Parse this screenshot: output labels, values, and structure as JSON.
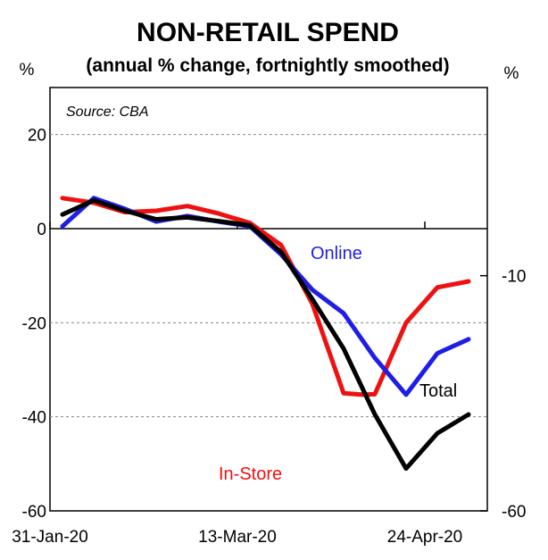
{
  "chart_data": {
    "type": "line",
    "title": "NON-RETAIL SPEND",
    "subtitle": "(annual % change, fortnightly smoothed)",
    "source": "Source: CBA",
    "left_unit": "%",
    "right_unit": "%",
    "ylim": [
      -60,
      30
    ],
    "left_ticks": [
      "20",
      "0",
      "-20",
      "-40",
      "-60"
    ],
    "left_tick_values": [
      20,
      0,
      -20,
      -40,
      -60
    ],
    "right_ticks": [
      "-10",
      "-60"
    ],
    "right_tick_values": [
      -10,
      -60
    ],
    "gridlines": [
      20,
      -20,
      -40
    ],
    "x_range": [
      0,
      14
    ],
    "x_tick_positions": [
      0,
      6,
      12
    ],
    "x_labels": [
      "31-Jan-20",
      "13-Mar-20",
      "24-Apr-20"
    ],
    "x_label_values": [
      0,
      6,
      12
    ],
    "series": [
      {
        "name": "In-Store",
        "color": "#ee1111",
        "values": [
          [
            0.4,
            6.5
          ],
          [
            1.4,
            5.5
          ],
          [
            2.4,
            3.5
          ],
          [
            3.4,
            3.8
          ],
          [
            4.4,
            4.8
          ],
          [
            5.4,
            3.2
          ],
          [
            6.4,
            1.2
          ],
          [
            7.4,
            -3.5
          ],
          [
            8.4,
            -16
          ],
          [
            9.4,
            -35
          ],
          [
            10.0,
            -35.3
          ],
          [
            10.4,
            -35.2
          ],
          [
            11.4,
            -20
          ],
          [
            12.4,
            -12.5
          ],
          [
            13.4,
            -11.2
          ]
        ]
      },
      {
        "name": "Online",
        "color": "#1e1ee8",
        "values": [
          [
            0.4,
            0.5
          ],
          [
            1.4,
            6.5
          ],
          [
            2.4,
            4.2
          ],
          [
            3.4,
            1.5
          ],
          [
            4.4,
            2.7
          ],
          [
            5.4,
            1.5
          ],
          [
            6.4,
            0.5
          ],
          [
            7.4,
            -5.5
          ],
          [
            8.4,
            -13
          ],
          [
            9.4,
            -18
          ],
          [
            10.4,
            -27.5
          ],
          [
            11.4,
            -35.3
          ],
          [
            12.4,
            -26.5
          ],
          [
            13.4,
            -23.5
          ]
        ]
      },
      {
        "name": "Total",
        "color": "#000000",
        "values": [
          [
            0.4,
            3.0
          ],
          [
            1.4,
            6.0
          ],
          [
            2.4,
            3.8
          ],
          [
            3.4,
            2.0
          ],
          [
            4.4,
            2.4
          ],
          [
            5.4,
            1.6
          ],
          [
            6.4,
            0.7
          ],
          [
            7.4,
            -5.0
          ],
          [
            8.4,
            -15
          ],
          [
            9.4,
            -25.5
          ],
          [
            10.4,
            -39.5
          ],
          [
            11.4,
            -51
          ],
          [
            12.4,
            -43.5
          ],
          [
            13.4,
            -39.5
          ]
        ]
      }
    ]
  }
}
